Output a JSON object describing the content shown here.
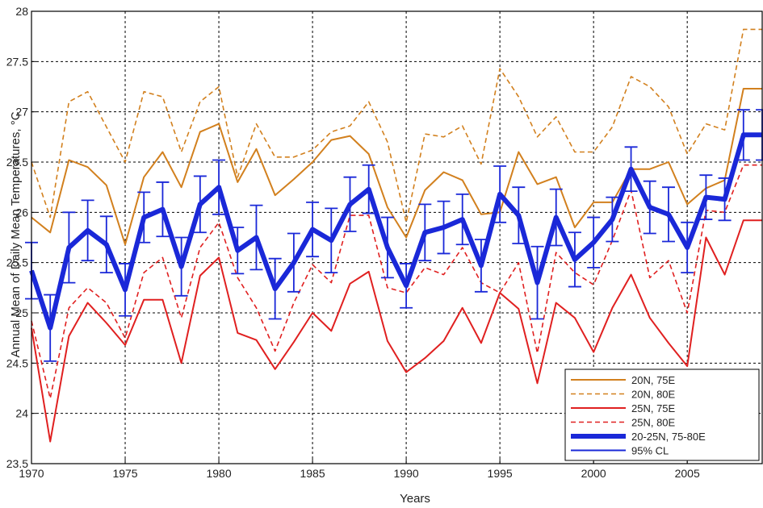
{
  "chart_data": {
    "type": "line",
    "title": "",
    "xlabel": "Years",
    "ylabel": "Annual Mean of Daily Mean Temperatures, °C",
    "xlim": [
      1970,
      2009
    ],
    "ylim": [
      23.5,
      28
    ],
    "x_ticks": [
      "1970",
      "1975",
      "1980",
      "1985",
      "1990",
      "1995",
      "2000",
      "2005"
    ],
    "y_ticks": [
      "23.5",
      "24",
      "24.5",
      "25",
      "25.5",
      "26",
      "26.5",
      "27",
      "27.5",
      "28"
    ],
    "grid": true,
    "legend_position": "bottom-right",
    "x": [
      1970,
      1971,
      1972,
      1973,
      1974,
      1975,
      1976,
      1977,
      1978,
      1979,
      1980,
      1981,
      1982,
      1983,
      1984,
      1985,
      1986,
      1987,
      1988,
      1989,
      1990,
      1991,
      1992,
      1993,
      1994,
      1995,
      1996,
      1997,
      1998,
      1999,
      2000,
      2001,
      2002,
      2003,
      2004,
      2005,
      2006,
      2007,
      2008,
      2009
    ],
    "series": [
      {
        "name": "20N, 75E",
        "color": "#d2801e",
        "style": "solid",
        "width": 2,
        "values": [
          25.95,
          25.8,
          26.52,
          26.45,
          26.27,
          25.68,
          26.35,
          26.6,
          26.25,
          26.8,
          26.88,
          26.3,
          26.63,
          26.17,
          26.33,
          26.5,
          26.72,
          26.76,
          26.58,
          26.05,
          25.75,
          26.22,
          26.4,
          26.32,
          25.98,
          26.0,
          26.6,
          26.28,
          26.35,
          25.85,
          26.1,
          26.1,
          26.43,
          26.43,
          26.5,
          26.08,
          26.24,
          26.32,
          27.23,
          27.23
        ]
      },
      {
        "name": "20N, 80E",
        "color": "#d2801e",
        "style": "dashed",
        "width": 1.6,
        "values": [
          26.5,
          25.95,
          27.1,
          27.2,
          26.85,
          26.5,
          27.2,
          27.15,
          26.6,
          27.1,
          27.25,
          26.35,
          26.88,
          26.55,
          26.55,
          26.62,
          26.8,
          26.86,
          27.1,
          26.7,
          25.9,
          26.78,
          26.75,
          26.86,
          26.48,
          27.43,
          27.15,
          26.75,
          26.95,
          26.6,
          26.6,
          26.85,
          27.35,
          27.25,
          27.05,
          26.58,
          26.88,
          26.82,
          27.82,
          27.82
        ]
      },
      {
        "name": "25N, 75E",
        "color": "#e02020",
        "style": "solid",
        "width": 2,
        "values": [
          24.85,
          23.72,
          24.77,
          25.1,
          24.9,
          24.68,
          25.13,
          25.13,
          24.5,
          25.37,
          25.55,
          24.8,
          24.73,
          24.44,
          24.71,
          25.0,
          24.82,
          25.29,
          25.41,
          24.72,
          24.41,
          24.55,
          24.72,
          25.05,
          24.7,
          25.2,
          25.04,
          24.3,
          25.1,
          24.95,
          24.61,
          25.05,
          25.38,
          24.95,
          24.7,
          24.47,
          25.75,
          25.38,
          25.92,
          25.92
        ]
      },
      {
        "name": "25N, 80E",
        "color": "#e02020",
        "style": "dashed",
        "width": 1.6,
        "values": [
          24.92,
          24.15,
          25.05,
          25.25,
          25.1,
          24.75,
          25.4,
          25.55,
          24.95,
          25.65,
          25.9,
          25.35,
          25.05,
          24.62,
          25.1,
          25.48,
          25.3,
          25.97,
          25.97,
          25.25,
          25.2,
          25.45,
          25.38,
          25.65,
          25.3,
          25.2,
          25.5,
          24.6,
          25.6,
          25.4,
          25.28,
          25.72,
          26.22,
          25.35,
          25.52,
          25.0,
          26.02,
          26.0,
          26.47,
          26.47
        ]
      },
      {
        "name": "20-25N, 75-80E",
        "color": "#1a28d8",
        "style": "solid",
        "width": 6,
        "values": [
          25.42,
          24.85,
          25.65,
          25.82,
          25.68,
          25.23,
          25.95,
          26.03,
          25.46,
          26.08,
          26.25,
          25.62,
          25.75,
          25.24,
          25.5,
          25.83,
          25.72,
          26.08,
          26.23,
          25.65,
          25.27,
          25.8,
          25.85,
          25.93,
          25.47,
          26.18,
          25.97,
          25.3,
          25.95,
          25.53,
          25.7,
          25.93,
          26.43,
          26.05,
          25.98,
          25.65,
          26.15,
          26.13,
          26.77,
          26.77
        ]
      },
      {
        "name": "95% CL",
        "color": "#1a28d8",
        "style": "errorbar",
        "width": 1.8,
        "errors": [
          0.28,
          0.33,
          0.35,
          0.3,
          0.28,
          0.26,
          0.25,
          0.27,
          0.29,
          0.28,
          0.27,
          0.23,
          0.32,
          0.3,
          0.29,
          0.27,
          0.32,
          0.27,
          0.24,
          0.3,
          0.22,
          0.28,
          0.26,
          0.25,
          0.26,
          0.28,
          0.28,
          0.36,
          0.28,
          0.27,
          0.25,
          0.22,
          0.22,
          0.26,
          0.27,
          0.25,
          0.22,
          0.21,
          0.25,
          0.25
        ]
      }
    ]
  }
}
